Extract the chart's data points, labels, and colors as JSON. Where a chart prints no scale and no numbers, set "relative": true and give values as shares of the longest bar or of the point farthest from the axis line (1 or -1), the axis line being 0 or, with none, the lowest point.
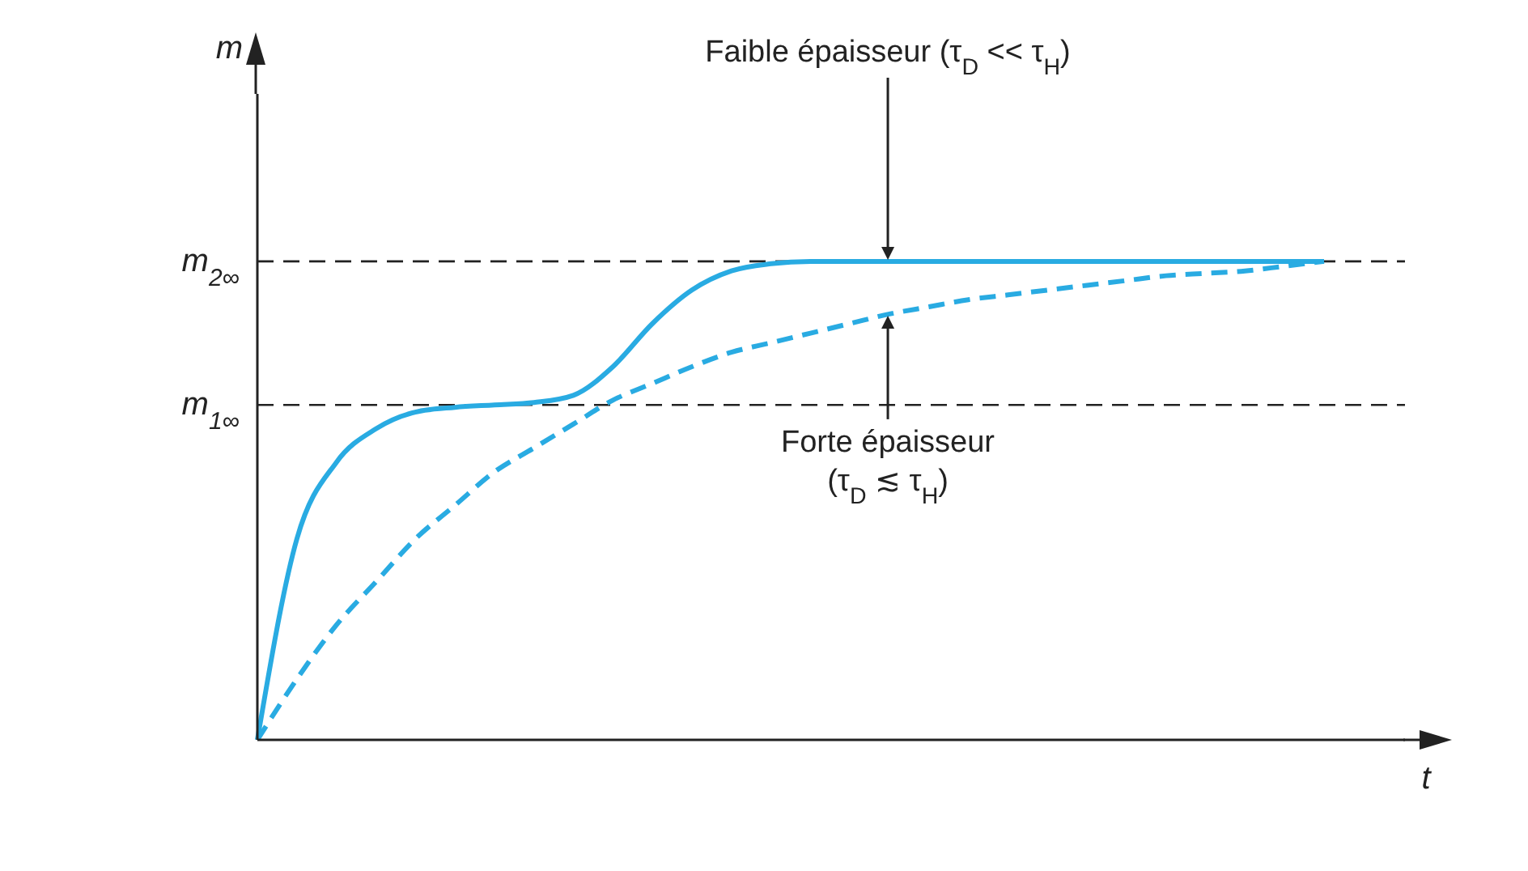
{
  "chart_data": {
    "type": "line",
    "relative": true,
    "xlabel": "t",
    "categories": [
      null,
      null,
      null,
      null,
      null,
      null,
      null,
      null,
      null,
      null,
      null,
      null,
      null,
      null,
      null,
      null,
      null,
      null,
      null,
      null,
      null,
      null,
      null,
      null,
      null,
      null,
      null,
      null
    ],
    "series": [
      {
        "color": "#29abe2",
        "line_style": "solid",
        "values": [
          0,
          0.42,
          0.58,
          0.65,
          0.685,
          0.695,
          0.7,
          0.705,
          0.72,
          0.78,
          0.87,
          0.94,
          0.98,
          0.995,
          1,
          1,
          1,
          1,
          1,
          1,
          1,
          1,
          1,
          1,
          1,
          1,
          1,
          1
        ]
      },
      {
        "color": "#29abe2",
        "line_style": "dashed",
        "values": [
          0,
          0.127,
          0.24,
          0.33,
          0.42,
          0.49,
          0.56,
          0.61,
          0.66,
          0.71,
          0.745,
          0.78,
          0.81,
          0.83,
          0.85,
          0.87,
          0.89,
          0.905,
          0.92,
          0.93,
          0.94,
          0.95,
          0.96,
          0.97,
          0.975,
          0.98,
          0.99,
          1
        ]
      }
    ],
    "ref_lines": [
      {
        "axis": "y",
        "value": 1,
        "label": "m$_{2∞}$",
        "line_style": "dashed",
        "color": "#222222"
      },
      {
        "axis": "y",
        "value": 0.7,
        "label": "m$_{1∞}$",
        "line_style": "dashed",
        "color": "#222222"
      }
    ],
    "annotations": [
      "Faible épaisseur (τ$_{D}$ << τ$_{H}$)",
      "Forte épaisseur (τ$_{D}$ ≲ τ$_{H}$)",
      "m"
    ],
    "marker": "none"
  }
}
